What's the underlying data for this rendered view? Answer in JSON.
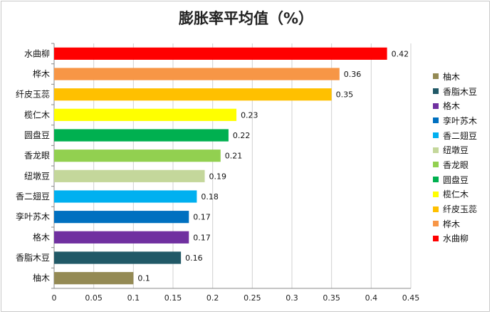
{
  "chart_data": {
    "type": "bar",
    "orientation": "horizontal",
    "title": "膨胀率平均值（%）",
    "categories": [
      "水曲柳",
      "桦木",
      "纤皮玉蕊",
      "榄仁木",
      "圆盘豆",
      "香龙眼",
      "纽墩豆",
      "香二翅豆",
      "孪叶苏木",
      "格木",
      "香脂木豆",
      "柚木"
    ],
    "values": [
      0.42,
      0.36,
      0.35,
      0.23,
      0.22,
      0.21,
      0.19,
      0.18,
      0.17,
      0.17,
      0.16,
      0.1
    ],
    "value_labels": [
      "0.42",
      "0.36",
      "0.35",
      "0.23",
      "0.22",
      "0.21",
      "0.19",
      "0.18",
      "0.17",
      "0.17",
      "0.16",
      "0.1"
    ],
    "colors": [
      "#ff0000",
      "#f79646",
      "#ffc000",
      "#ffff00",
      "#00b050",
      "#92d050",
      "#c4d79b",
      "#00b0f0",
      "#0070c0",
      "#7030a0",
      "#215967",
      "#948a54"
    ],
    "xlim": [
      0,
      0.45
    ],
    "x_ticks": [
      "0",
      "0.05",
      "0.1",
      "0.15",
      "0.2",
      "0.25",
      "0.3",
      "0.35",
      "0.4",
      "0.45"
    ],
    "xlabel": "",
    "ylabel": "",
    "grid": "vertical",
    "legend": {
      "position": "right",
      "entries": [
        "柚木",
        "香脂木豆",
        "格木",
        "孪叶苏木",
        "香二翅豆",
        "纽墩豆",
        "香龙眼",
        "圆盘豆",
        "榄仁木",
        "纤皮玉蕊",
        "桦木",
        "水曲柳"
      ],
      "colors": [
        "#948a54",
        "#215967",
        "#7030a0",
        "#0070c0",
        "#00b0f0",
        "#c4d79b",
        "#92d050",
        "#00b050",
        "#ffff00",
        "#ffc000",
        "#f79646",
        "#ff0000"
      ]
    }
  }
}
